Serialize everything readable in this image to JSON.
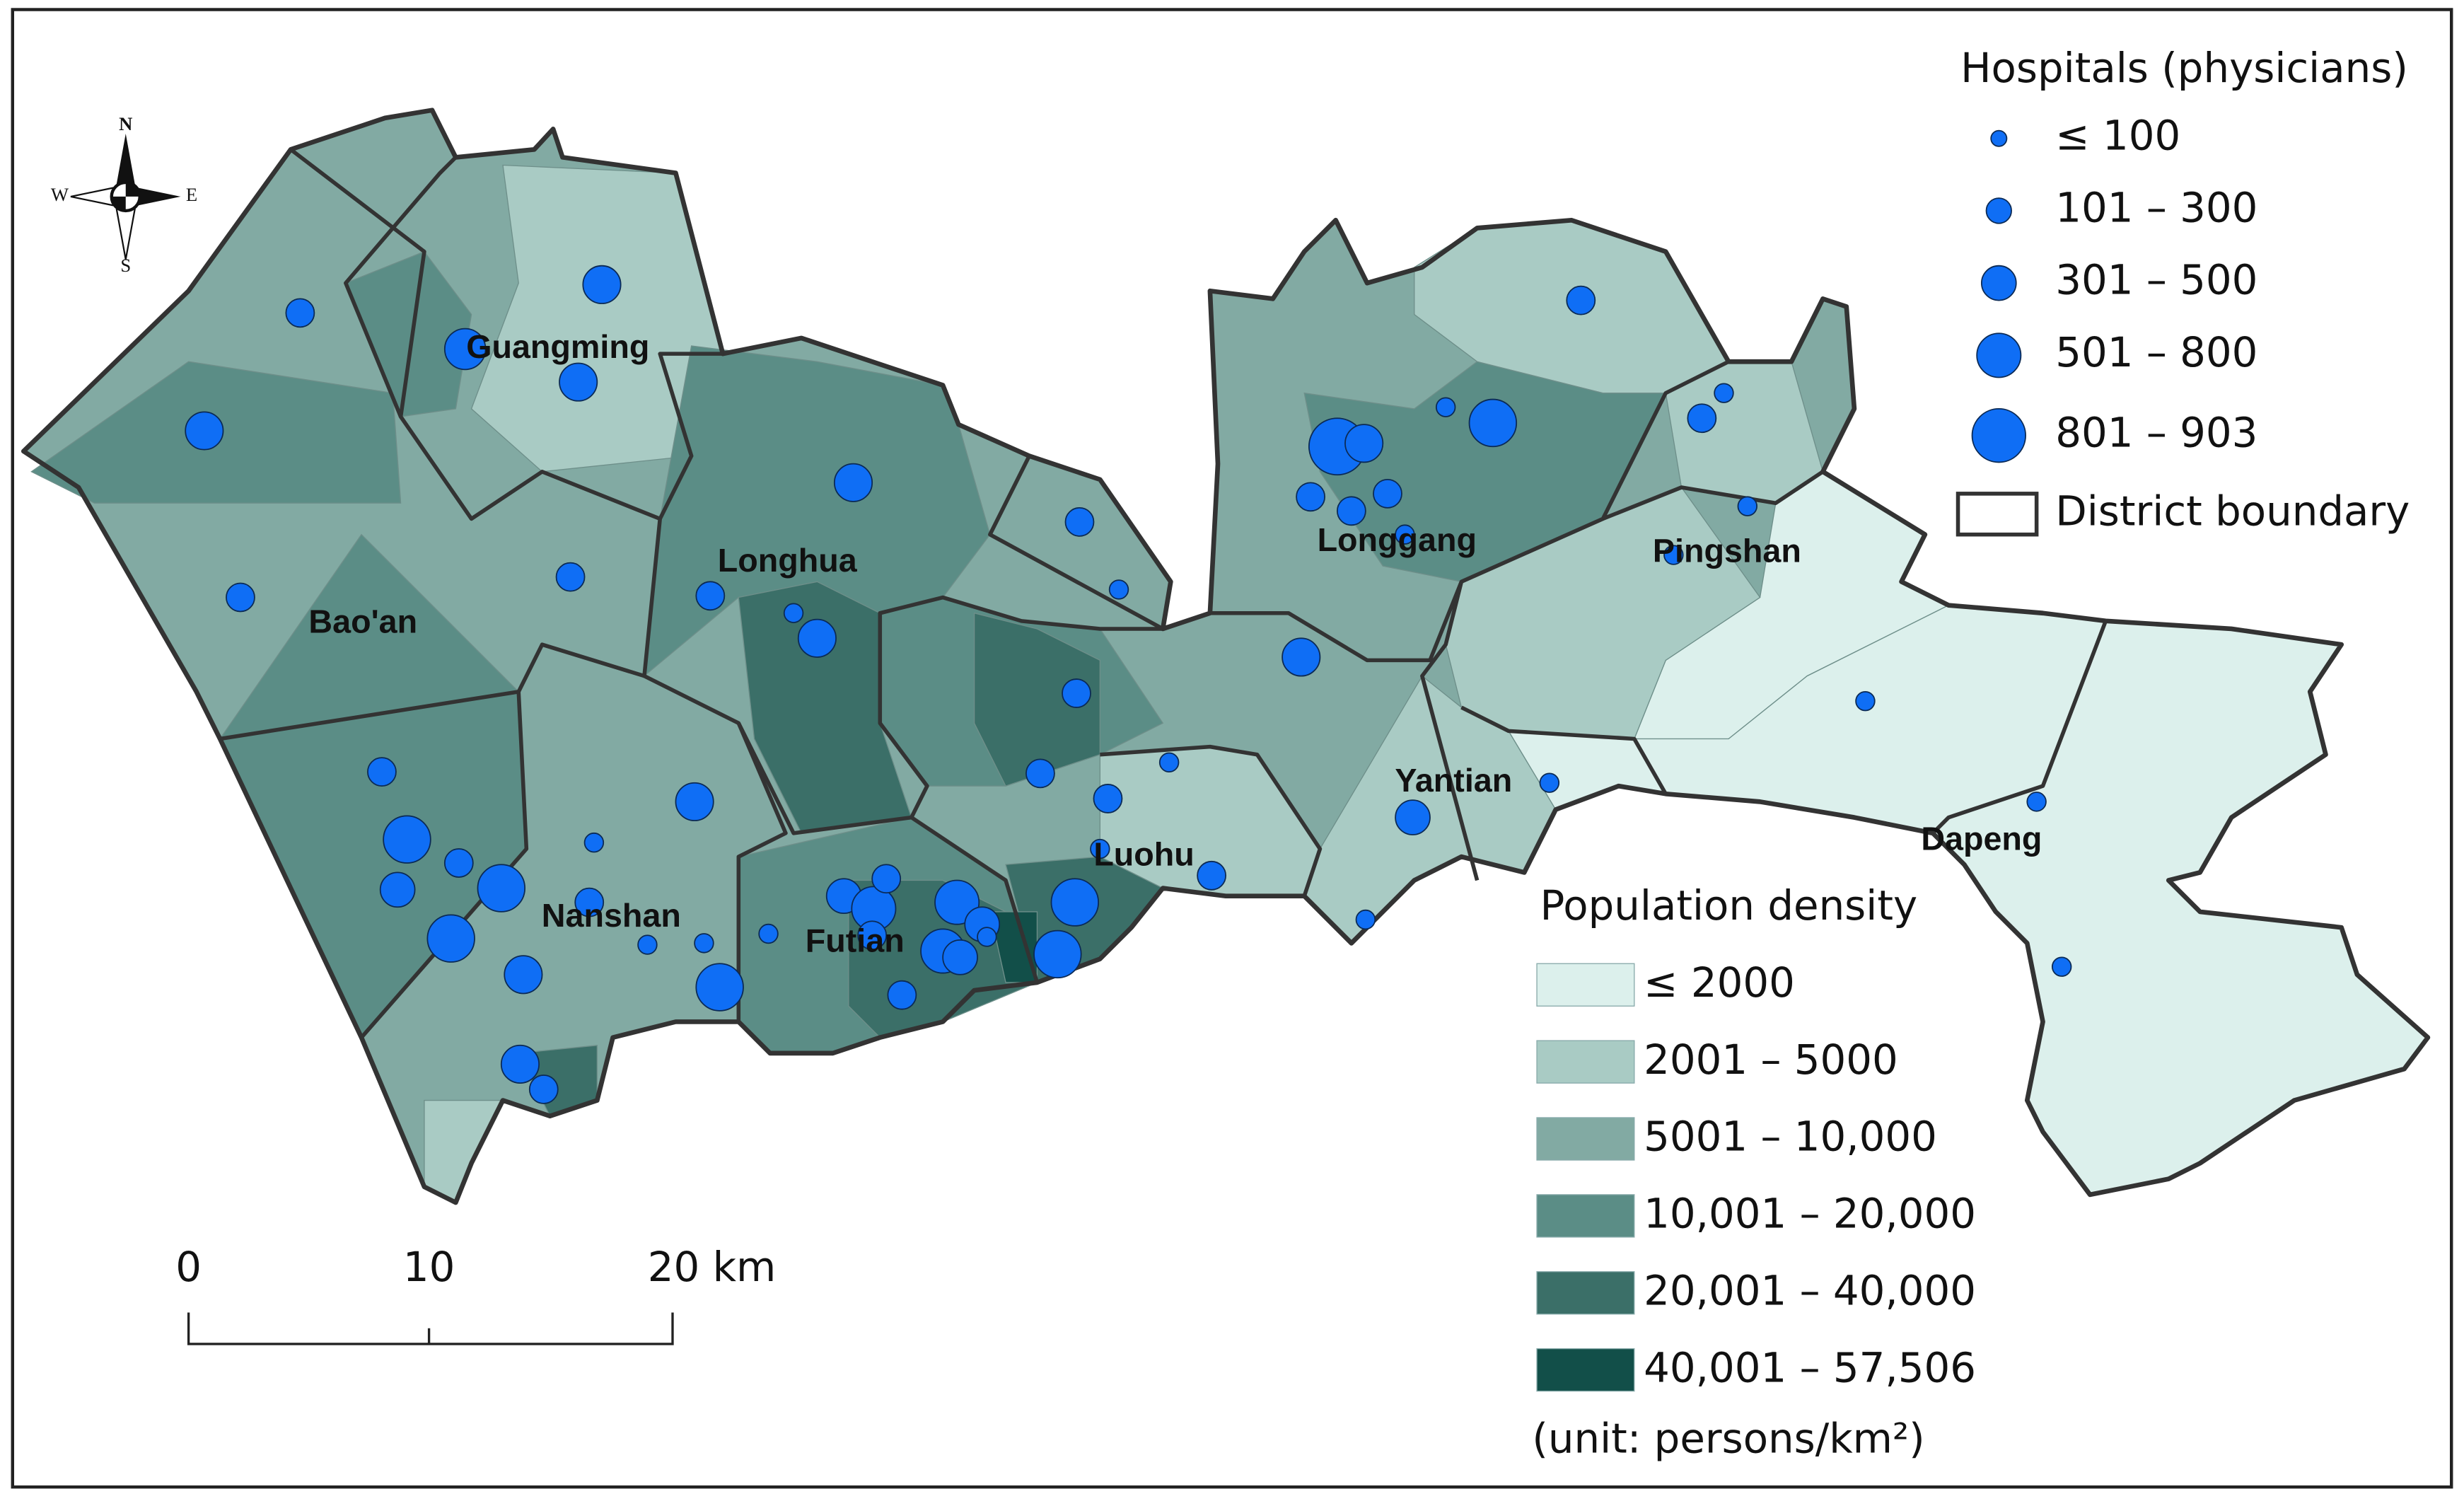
{
  "map": {
    "districts": [
      "Guangming",
      "Bao'an",
      "Longhua",
      "Nanshan",
      "Futian",
      "Luohu",
      "Longgang",
      "Pingshan",
      "Yantian",
      "Dapeng"
    ],
    "compass": {
      "n": "N",
      "s": "S",
      "e": "E",
      "w": "W"
    },
    "scale_bar": {
      "labels": [
        "0",
        "10",
        "20 km"
      ]
    },
    "legend": {
      "hospitals": {
        "title": "Hospitals (physicians)",
        "items": [
          "≤ 100",
          "101 – 300",
          "301 – 500",
          "501 – 800",
          "801 – 903"
        ],
        "color": "#0f6ef5",
        "boundary_label": "District boundary"
      },
      "density": {
        "title": "Population density",
        "items": [
          {
            "label": "≤ 2000",
            "color": "#dcf0ec"
          },
          {
            "label": "2001 – 5000",
            "color": "#a9cbc4"
          },
          {
            "label": "5001 – 10,000",
            "color": "#82aaa3"
          },
          {
            "label": "10,001 – 20,000",
            "color": "#5b8d86"
          },
          {
            "label": "20,001 – 40,000",
            "color": "#3b6f68"
          },
          {
            "label": "40,001 – 57,506",
            "color": "#124f49"
          }
        ],
        "unit": "(unit: persons/km²)"
      }
    }
  }
}
